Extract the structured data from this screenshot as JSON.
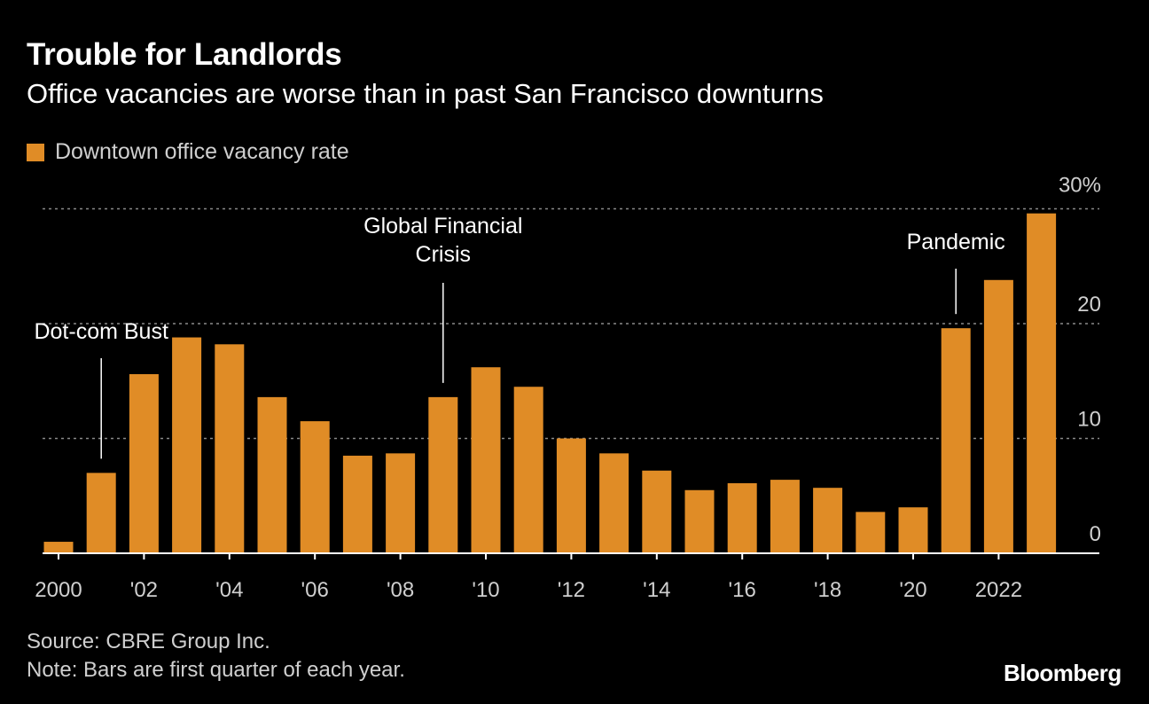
{
  "header": {
    "title": "Trouble for Landlords",
    "subtitle": "Office vacancies are worse than in past San Francisco downturns"
  },
  "legend": {
    "label": "Downtown office vacancy rate",
    "color": "#E08C26"
  },
  "footer": {
    "source": "Source: CBRE Group Inc.",
    "note": "Note: Bars are first quarter of each year.",
    "brand": "Bloomberg"
  },
  "chart_data": {
    "type": "bar",
    "title": "Trouble for Landlords",
    "subtitle": "Office vacancies are worse than in past San Francisco downturns",
    "xlabel": "",
    "ylabel": "",
    "ylim": [
      0,
      30
    ],
    "bar_color": "#E08C26",
    "background": "#000000",
    "grid": true,
    "legend_position": "top-left",
    "categories": [
      2000,
      2001,
      2002,
      2003,
      2004,
      2005,
      2006,
      2007,
      2008,
      2009,
      2010,
      2011,
      2012,
      2013,
      2014,
      2015,
      2016,
      2017,
      2018,
      2019,
      2020,
      2021,
      2022,
      2023
    ],
    "series": [
      {
        "name": "Downtown office vacancy rate",
        "values": [
          1.0,
          7.0,
          15.6,
          18.8,
          18.2,
          13.6,
          11.5,
          8.5,
          8.7,
          13.6,
          16.2,
          14.5,
          10.0,
          8.7,
          7.2,
          5.5,
          6.1,
          6.4,
          5.7,
          3.6,
          4.0,
          19.6,
          23.8,
          29.6
        ]
      }
    ],
    "y_ticks": [
      {
        "value": 0,
        "label": "0"
      },
      {
        "value": 10,
        "label": "10"
      },
      {
        "value": 20,
        "label": "20"
      },
      {
        "value": 30,
        "label": "30%"
      }
    ],
    "x_ticks": [
      {
        "year": 2000,
        "label": "2000"
      },
      {
        "year": 2002,
        "label": "'02"
      },
      {
        "year": 2004,
        "label": "'04"
      },
      {
        "year": 2006,
        "label": "'06"
      },
      {
        "year": 2008,
        "label": "'08"
      },
      {
        "year": 2010,
        "label": "'10"
      },
      {
        "year": 2012,
        "label": "'12"
      },
      {
        "year": 2014,
        "label": "'14"
      },
      {
        "year": 2016,
        "label": "'16"
      },
      {
        "year": 2018,
        "label": "'18"
      },
      {
        "year": 2020,
        "label": "'20"
      },
      {
        "year": 2022,
        "label": "2022"
      }
    ],
    "annotations": [
      {
        "name": "dot-com-bust",
        "year": 2001,
        "lines": [
          "Dot-com Bust"
        ]
      },
      {
        "name": "global-financial-crisis",
        "year": 2009,
        "lines": [
          "Global Financial",
          "Crisis"
        ]
      },
      {
        "name": "pandemic",
        "year": 2021,
        "lines": [
          "Pandemic"
        ]
      }
    ]
  }
}
